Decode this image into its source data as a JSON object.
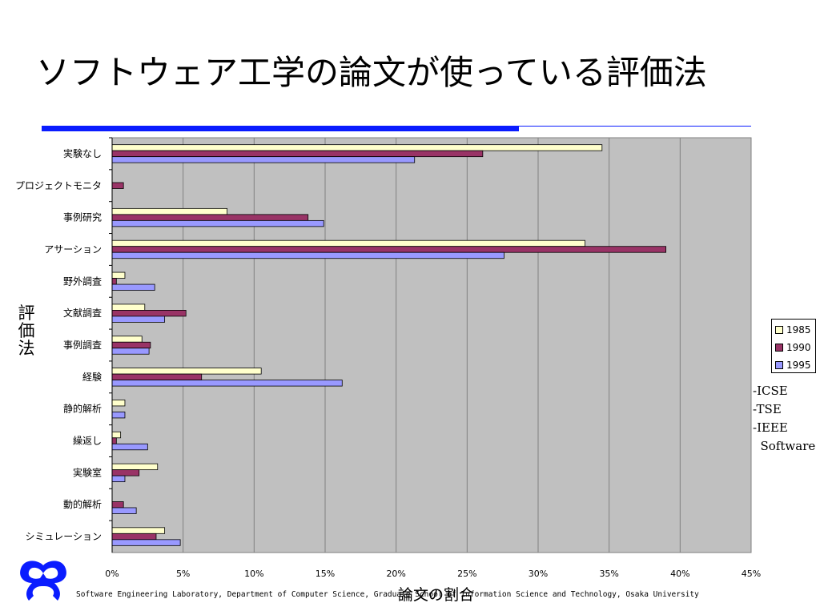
{
  "slide": {
    "title": "ソフトウェア工学の論文が使っている評価法",
    "footer": "Software Engineering Laboratory, Department of Computer Science, Graduate School of Information Science and Technology, Osaka University",
    "notes": [
      "-ICSE",
      "-TSE",
      "-IEEE",
      "  Software"
    ]
  },
  "colors": {
    "accent_rule": "#0a1cff",
    "plot_bg": "#c0c0c0",
    "series": [
      "#ffffcc",
      "#993366",
      "#9999ff"
    ],
    "logo": "#0a1cff"
  },
  "chart_data": {
    "type": "bar",
    "orientation": "horizontal",
    "categories": [
      "実験なし",
      "プロジェクトモニタ",
      "事例研究",
      "アサーション",
      "野外調査",
      "文献調査",
      "事例調査",
      "経験",
      "静的解析",
      "繰返し",
      "実験室",
      "動的解析",
      "シミュレーション"
    ],
    "series": [
      {
        "name": "1985",
        "values": [
          34.5,
          0,
          8.1,
          33.3,
          0.9,
          2.3,
          2.1,
          10.5,
          0.9,
          0.6,
          3.2,
          0,
          3.7
        ]
      },
      {
        "name": "1990",
        "values": [
          26.1,
          0.8,
          13.8,
          39.0,
          0.3,
          5.2,
          2.7,
          6.3,
          0,
          0.3,
          1.9,
          0.8,
          3.1
        ]
      },
      {
        "name": "1995",
        "values": [
          21.3,
          0,
          14.9,
          27.6,
          3.0,
          3.7,
          2.6,
          16.2,
          0.9,
          2.5,
          0.9,
          1.7,
          4.8
        ]
      }
    ],
    "xlabel": "論文の割合",
    "ylabel": "評価法",
    "xlim": [
      0,
      45
    ],
    "x_ticks": [
      "0%",
      "5%",
      "10%",
      "15%",
      "20%",
      "25%",
      "30%",
      "35%",
      "40%",
      "45%"
    ],
    "grid": true,
    "legend": "right"
  }
}
